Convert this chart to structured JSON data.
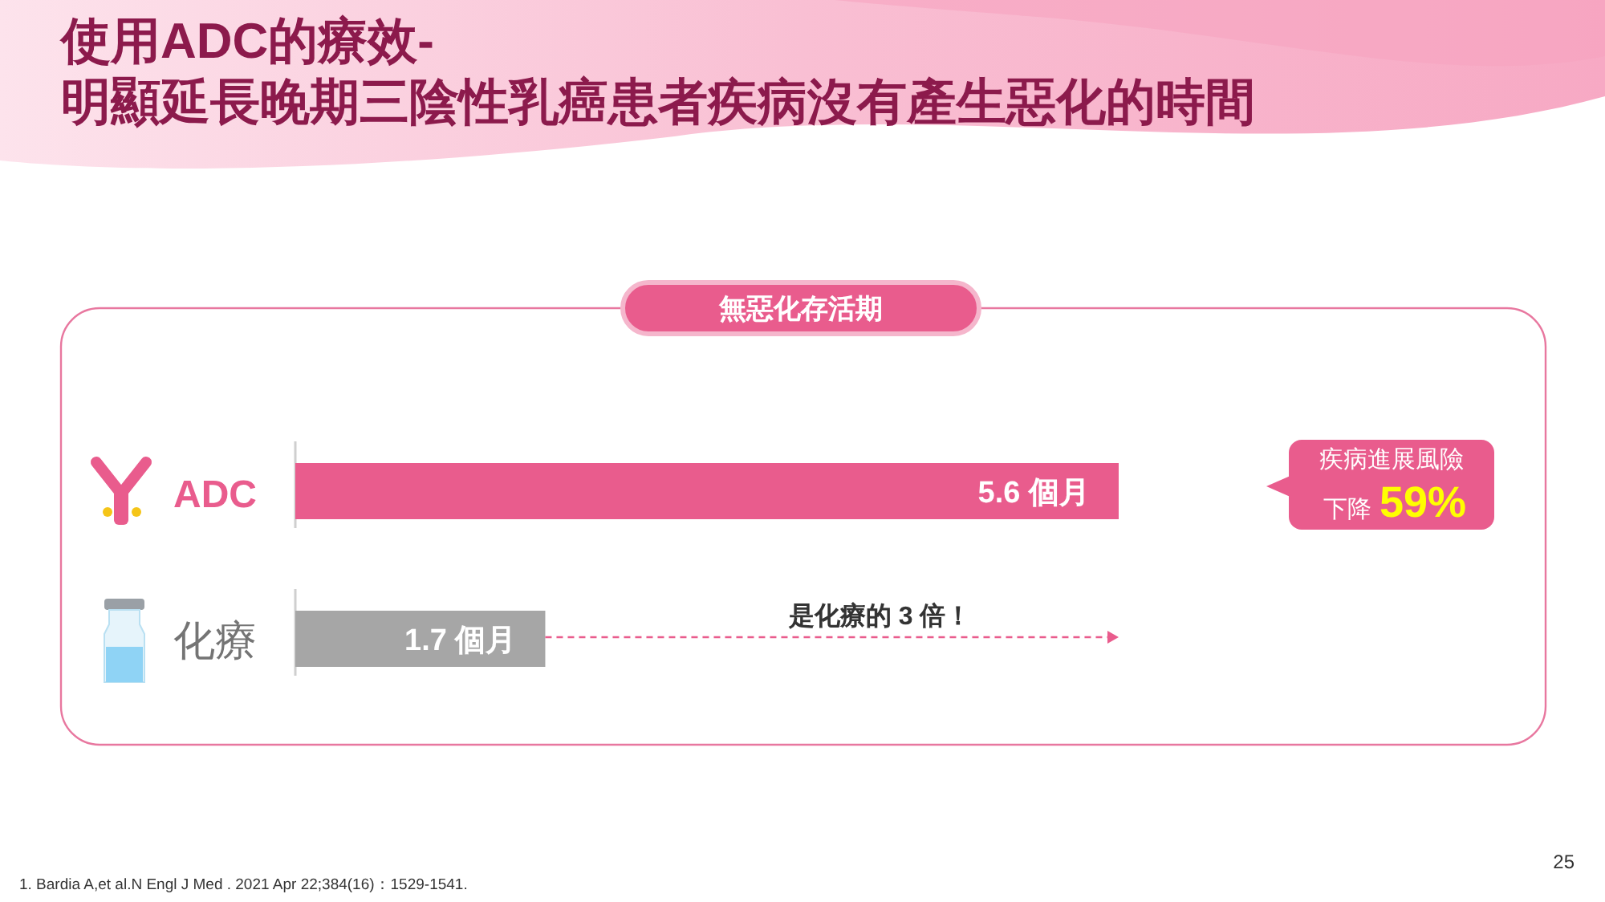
{
  "chart_data": {
    "type": "bar",
    "orientation": "horizontal",
    "title": "使用ADC的療效-\n明顯延長晚期三陰性乳癌患者疾病沒有產生惡化的時間",
    "subtitle": "無惡化存活期",
    "categories": [
      "ADC",
      "化療"
    ],
    "values": [
      5.6,
      1.7
    ],
    "colors": [
      "#e95c8d",
      "#a6a6a6"
    ],
    "value_labels": [
      "5.6 個月",
      "1.7 個月"
    ],
    "tick_labels": "y",
    "annotations": [
      "疾病進展風險",
      "下降59%",
      "是化療的 3 倍！",
      "1.  Bardia A,et al.N Engl J Med . 2021 Apr 22;384(16)：1529-1541.",
      "25"
    ]
  }
}
